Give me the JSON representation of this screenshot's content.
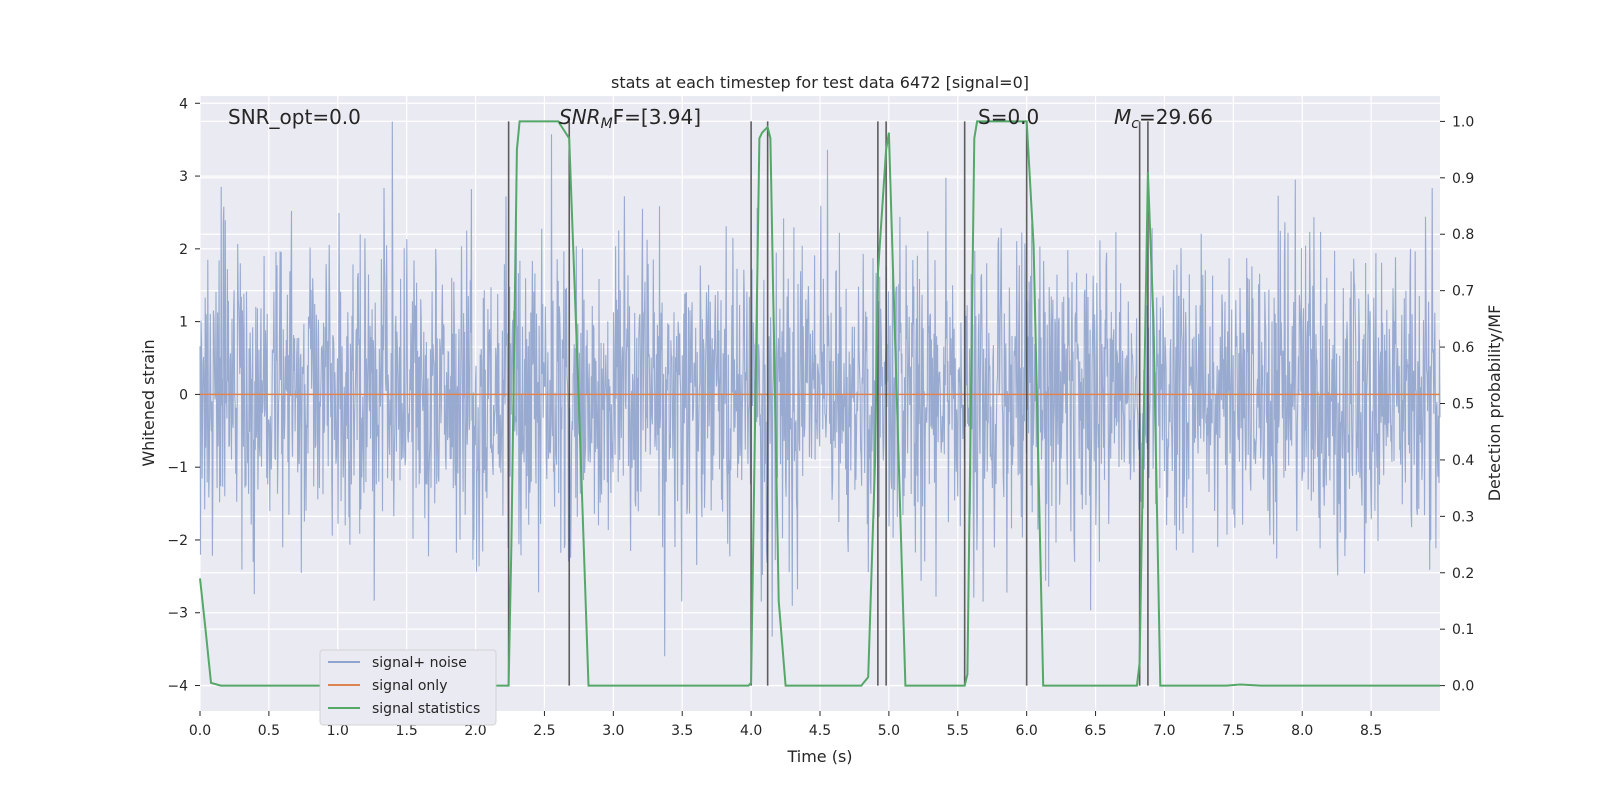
{
  "chart_data": {
    "type": "line",
    "title": "stats at each timestep for test data 6472 [signal=0]",
    "xlabel": "Time (s)",
    "ylabel_left": "Whitened strain",
    "ylabel_right": "Detection probability/MF",
    "xlim": [
      0.0,
      9.0
    ],
    "ylim_left": [
      -4.35,
      4.1
    ],
    "ylim_right": [
      -0.045,
      1.045
    ],
    "x_ticks": [
      "0.0",
      "0.5",
      "1.0",
      "1.5",
      "2.0",
      "2.5",
      "3.0",
      "3.5",
      "4.0",
      "4.5",
      "5.0",
      "5.5",
      "6.0",
      "6.5",
      "7.0",
      "7.5",
      "8.0",
      "8.5"
    ],
    "y_left_ticks": [
      "−4",
      "−3",
      "−2",
      "−1",
      "0",
      "1",
      "2",
      "3",
      "4"
    ],
    "y_right_ticks": [
      "0.0",
      "0.1",
      "0.2",
      "0.3",
      "0.4",
      "0.5",
      "0.6",
      "0.7",
      "0.8",
      "0.9",
      "1.0"
    ],
    "grid": true,
    "legend_placement": "lower-left",
    "annotations": [
      "SNR_opt=0.0",
      "SNR",
      "M",
      "F=[3.94]",
      "S=0.0",
      "M",
      "c",
      "=29.66"
    ],
    "colors": {
      "noise": "#8fa3cc",
      "signal_only": "#dd8452",
      "statistics": "#55a868",
      "vlines": "#444444",
      "axes_bg": "#eaeaf2"
    },
    "series": [
      {
        "name": "signal+ noise",
        "axis": "left",
        "description_values": "whitened strain noise, amplitude about ±2 typical, peaks near ±3.7"
      },
      {
        "name": "signal only",
        "axis": "left",
        "x": [
          0.0,
          9.0
        ],
        "values": [
          0.0,
          0.0
        ]
      },
      {
        "name": "signal statistics",
        "axis": "right",
        "x": [
          0.0,
          0.04,
          0.08,
          0.15,
          1.5,
          1.9,
          2.0,
          2.1,
          2.24,
          2.26,
          2.3,
          2.32,
          2.45,
          2.6,
          2.68,
          2.75,
          2.82,
          2.9,
          3.5,
          3.98,
          4.0,
          4.06,
          4.08,
          4.12,
          4.14,
          4.2,
          4.25,
          4.5,
          4.8,
          4.85,
          4.9,
          4.92,
          4.98,
          5.0,
          5.12,
          5.55,
          5.57,
          5.62,
          5.64,
          6.0,
          6.05,
          6.12,
          6.5,
          6.8,
          6.82,
          6.88,
          6.92,
          6.97,
          7.0,
          7.45,
          7.55,
          7.7,
          9.0
        ],
        "values": [
          0.19,
          0.1,
          0.005,
          0.0,
          0.0,
          0.0,
          0.003,
          0.0,
          0.0,
          0.25,
          0.95,
          1.0,
          1.0,
          1.0,
          0.97,
          0.5,
          0.0,
          0.0,
          0.0,
          0.0,
          0.005,
          0.97,
          0.98,
          0.99,
          0.97,
          0.15,
          0.0,
          0.0,
          0.0,
          0.015,
          0.4,
          0.73,
          0.95,
          0.98,
          0.0,
          0.0,
          0.02,
          0.97,
          1.0,
          1.0,
          0.78,
          0.0,
          0.0,
          0.0,
          0.04,
          0.91,
          0.65,
          0.0,
          0.0,
          0.0,
          0.002,
          0.0,
          0.0
        ]
      }
    ],
    "vertical_lines_x": [
      2.24,
      2.68,
      4.0,
      4.12,
      4.92,
      4.98,
      5.55,
      6.0,
      6.82,
      6.88
    ]
  }
}
